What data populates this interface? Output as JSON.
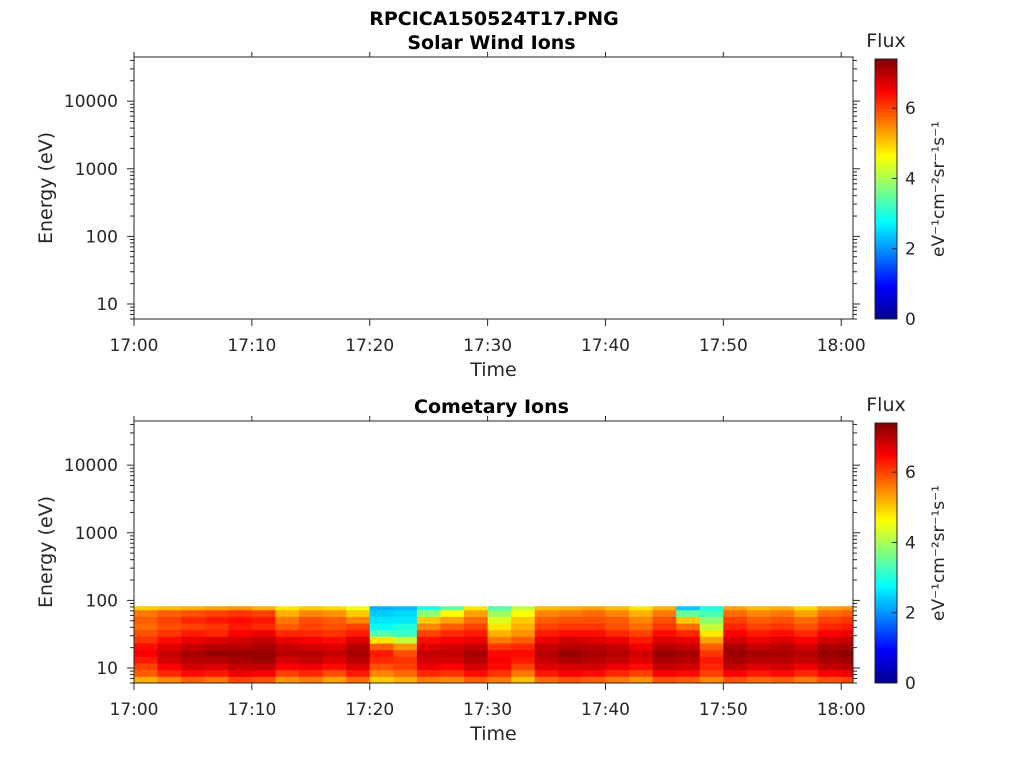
{
  "figure_title": "RPCICA150524T17.PNG",
  "chart_data": [
    {
      "type": "heatmap",
      "title": "Solar Wind Ions",
      "xlabel": "Time",
      "ylabel": "Energy (eV)",
      "yscale": "log",
      "xlim": [
        "17:00",
        "18:01"
      ],
      "ylim": [
        6,
        45000
      ],
      "xticks": [
        "17:00",
        "17:10",
        "17:20",
        "17:30",
        "17:40",
        "17:50",
        "18:00"
      ],
      "yticks": [
        "10",
        "100",
        "1000",
        "10000"
      ],
      "colorbar": {
        "label": "Flux",
        "unit": "eV⁻¹cm⁻²sr⁻¹s⁻¹",
        "range": [
          0,
          7.4
        ],
        "ticks": [
          "0",
          "2",
          "4",
          "6"
        ],
        "colormap": "jet"
      },
      "data": []
    },
    {
      "type": "heatmap",
      "title": "Cometary Ions",
      "xlabel": "Time",
      "ylabel": "Energy (eV)",
      "yscale": "log",
      "xlim": [
        "17:00",
        "18:01"
      ],
      "ylim": [
        6,
        45000
      ],
      "xticks": [
        "17:00",
        "17:10",
        "17:20",
        "17:30",
        "17:40",
        "17:50",
        "18:00"
      ],
      "yticks": [
        "10",
        "100",
        "1000",
        "10000"
      ],
      "colorbar": {
        "label": "Flux",
        "unit": "eV⁻¹cm⁻²sr⁻¹s⁻¹",
        "range": [
          0,
          7.4
        ],
        "ticks": [
          "0",
          "2",
          "4",
          "6"
        ],
        "colormap": "jet"
      },
      "energy_bands_eV": [
        6,
        7.5,
        9.4,
        11.8,
        14.8,
        18.6,
        23.3,
        29.3,
        36.7,
        46,
        57.8,
        72.5,
        82
      ],
      "time_bins": [
        "17:00",
        "17:02",
        "17:04",
        "17:06",
        "17:08",
        "17:10",
        "17:12",
        "17:14",
        "17:16",
        "17:18",
        "17:20",
        "17:22",
        "17:24",
        "17:26",
        "17:28",
        "17:30",
        "17:32",
        "17:34",
        "17:36",
        "17:38",
        "17:40",
        "17:42",
        "17:44",
        "17:46",
        "17:48",
        "17:50",
        "17:52",
        "17:54",
        "17:56",
        "17:58",
        "18:00"
      ],
      "flux": [
        [
          5.2,
          5.8,
          6.0,
          6.3,
          6.5,
          6.4,
          6.1,
          5.9,
          5.7,
          5.8,
          5.6,
          5.0
        ],
        [
          5.5,
          6.2,
          6.5,
          6.8,
          6.9,
          6.7,
          6.4,
          6.1,
          5.9,
          6.0,
          5.8,
          5.1
        ],
        [
          5.8,
          6.4,
          6.8,
          7.0,
          7.1,
          6.9,
          6.6,
          6.3,
          6.0,
          6.2,
          5.9,
          5.2
        ],
        [
          5.6,
          6.3,
          6.7,
          7.0,
          7.2,
          7.0,
          6.7,
          6.2,
          6.1,
          6.3,
          6.0,
          5.3
        ],
        [
          6.0,
          6.6,
          6.9,
          7.1,
          7.2,
          7.0,
          6.8,
          6.5,
          6.3,
          6.4,
          6.1,
          5.4
        ],
        [
          5.9,
          6.5,
          6.9,
          7.2,
          7.2,
          7.1,
          6.9,
          6.6,
          6.2,
          6.3,
          6.0,
          5.2
        ],
        [
          5.4,
          6.0,
          6.5,
          6.8,
          7.0,
          6.9,
          6.6,
          6.2,
          5.8,
          5.6,
          5.2,
          4.8
        ],
        [
          5.6,
          6.2,
          6.6,
          6.9,
          7.0,
          6.8,
          6.5,
          6.2,
          6.0,
          5.9,
          5.5,
          5.0
        ],
        [
          5.3,
          5.9,
          6.4,
          6.7,
          6.9,
          6.7,
          6.4,
          6.1,
          5.9,
          5.8,
          5.4,
          4.9
        ],
        [
          5.7,
          6.3,
          6.7,
          7.0,
          7.1,
          7.0,
          6.7,
          6.3,
          6.0,
          5.5,
          5.0,
          4.5
        ],
        [
          5.0,
          5.5,
          5.9,
          6.2,
          6.3,
          5.8,
          4.8,
          3.4,
          2.8,
          2.6,
          2.4,
          2.2
        ],
        [
          5.2,
          5.7,
          6.0,
          6.1,
          5.9,
          5.4,
          4.2,
          3.2,
          3.0,
          2.6,
          2.5,
          2.3
        ],
        [
          5.6,
          6.2,
          6.6,
          6.8,
          6.9,
          6.7,
          6.4,
          6.0,
          5.5,
          5.0,
          3.8,
          3.0
        ],
        [
          5.5,
          6.1,
          6.5,
          6.8,
          6.9,
          6.8,
          6.5,
          6.2,
          5.8,
          5.3,
          4.6,
          3.5
        ],
        [
          5.8,
          6.4,
          6.8,
          7.0,
          7.1,
          6.9,
          6.6,
          6.3,
          6.0,
          5.7,
          5.3,
          4.8
        ],
        [
          5.6,
          6.1,
          6.4,
          6.5,
          6.4,
          6.1,
          5.6,
          5.2,
          4.8,
          4.4,
          3.9,
          3.4
        ],
        [
          5.1,
          5.6,
          6.0,
          6.3,
          6.4,
          6.2,
          5.8,
          5.4,
          5.2,
          5.0,
          4.6,
          4.2
        ],
        [
          5.7,
          6.3,
          6.7,
          6.9,
          7.0,
          6.9,
          6.6,
          6.3,
          6.0,
          5.8,
          5.5,
          5.1
        ],
        [
          5.9,
          6.5,
          6.8,
          7.1,
          7.2,
          7.0,
          6.8,
          6.4,
          6.1,
          5.9,
          5.6,
          5.2
        ],
        [
          5.8,
          6.4,
          6.8,
          7.0,
          7.1,
          7.0,
          6.7,
          6.4,
          6.1,
          5.9,
          5.7,
          5.3
        ],
        [
          5.6,
          6.2,
          6.6,
          6.9,
          7.0,
          6.9,
          6.6,
          6.2,
          5.9,
          5.8,
          5.5,
          5.1
        ],
        [
          5.4,
          6.0,
          6.4,
          6.7,
          6.8,
          6.6,
          6.3,
          6.0,
          5.7,
          5.5,
          5.2,
          4.8
        ],
        [
          5.9,
          6.5,
          6.9,
          7.1,
          7.2,
          7.0,
          6.7,
          6.4,
          6.1,
          5.9,
          5.6,
          5.2
        ],
        [
          5.8,
          6.4,
          6.8,
          7.0,
          7.1,
          6.9,
          6.6,
          6.2,
          5.7,
          5.0,
          3.5,
          2.4
        ],
        [
          5.5,
          6.0,
          6.2,
          6.3,
          6.1,
          5.8,
          5.3,
          4.8,
          4.2,
          3.8,
          3.3,
          3.0
        ],
        [
          5.9,
          6.5,
          6.9,
          7.1,
          7.2,
          7.1,
          6.8,
          6.5,
          6.2,
          6.0,
          5.7,
          5.3
        ],
        [
          5.7,
          6.3,
          6.7,
          7.0,
          7.1,
          6.9,
          6.6,
          6.3,
          6.0,
          5.8,
          5.5,
          5.1
        ],
        [
          5.8,
          6.4,
          6.8,
          7.0,
          7.1,
          7.0,
          6.7,
          6.4,
          6.1,
          5.9,
          5.6,
          5.2
        ],
        [
          5.6,
          6.2,
          6.6,
          6.9,
          7.0,
          6.8,
          6.5,
          6.2,
          5.9,
          5.7,
          5.3,
          4.9
        ],
        [
          5.9,
          6.5,
          6.9,
          7.1,
          7.2,
          7.1,
          6.8,
          6.5,
          6.2,
          6.0,
          5.7,
          5.3
        ],
        [
          6.0,
          6.6,
          7.0,
          7.2,
          7.3,
          7.1,
          6.9,
          6.6,
          6.3,
          6.1,
          5.8,
          5.4
        ]
      ]
    }
  ]
}
